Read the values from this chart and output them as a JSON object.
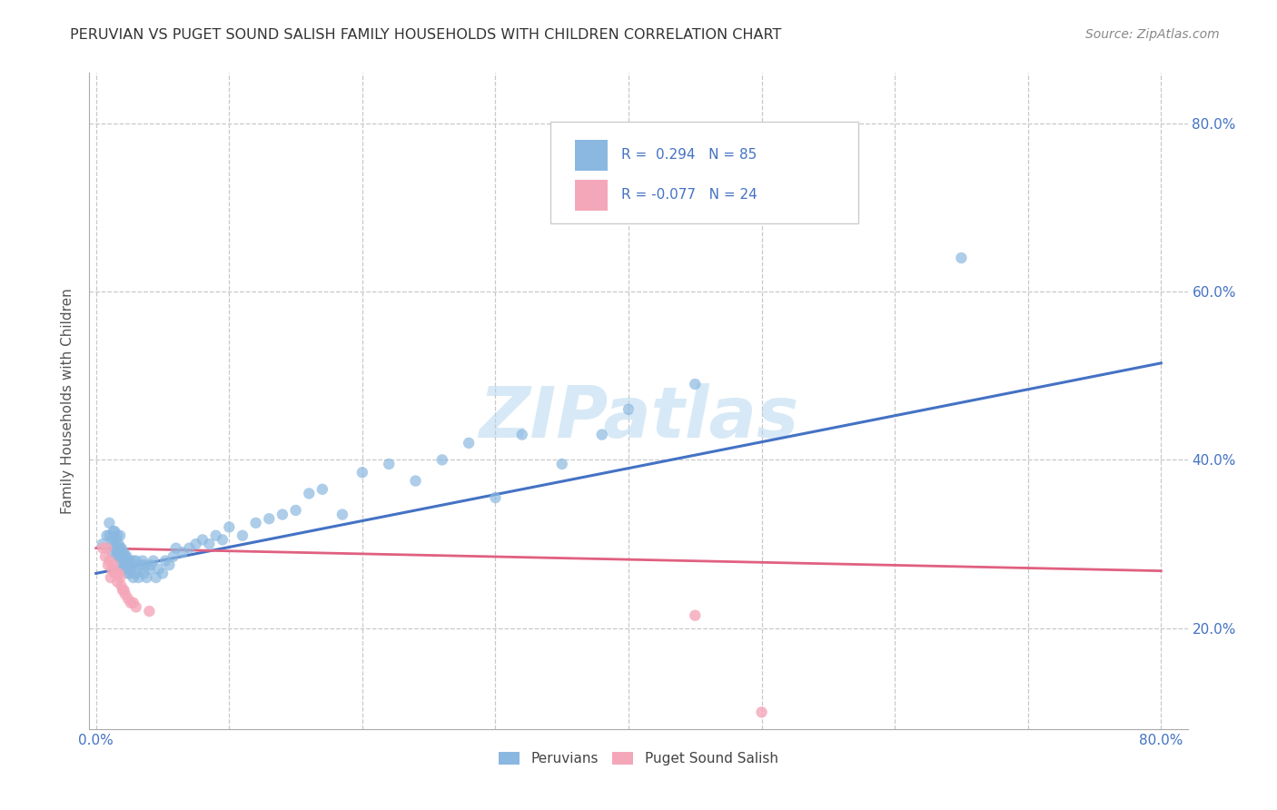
{
  "title": "PERUVIAN VS PUGET SOUND SALISH FAMILY HOUSEHOLDS WITH CHILDREN CORRELATION CHART",
  "source": "Source: ZipAtlas.com",
  "ylabel": "Family Households with Children",
  "ytick_labels": [
    "20.0%",
    "40.0%",
    "60.0%",
    "80.0%"
  ],
  "ytick_values": [
    0.2,
    0.4,
    0.6,
    0.8
  ],
  "xtick_labels": [
    "0.0%",
    "80.0%"
  ],
  "xtick_values": [
    0.0,
    0.8
  ],
  "xlim": [
    -0.005,
    0.82
  ],
  "ylim": [
    0.08,
    0.86
  ],
  "watermark": "ZIPatlas",
  "color_peruvian": "#8ab8e0",
  "color_salish": "#f4a7b9",
  "color_trend_peruvian": "#4472c4",
  "color_trend_salish": "#e06080",
  "background_color": "#ffffff",
  "grid_color": "#c8c8c8",
  "trend_peru_x0": 0.0,
  "trend_peru_y0": 0.265,
  "trend_peru_x1": 0.8,
  "trend_peru_y1": 0.515,
  "trend_salish_x0": 0.0,
  "trend_salish_y0": 0.295,
  "trend_salish_x1": 0.8,
  "trend_salish_y1": 0.268,
  "peru_x": [
    0.005,
    0.008,
    0.01,
    0.01,
    0.012,
    0.012,
    0.013,
    0.013,
    0.014,
    0.014,
    0.015,
    0.015,
    0.015,
    0.016,
    0.016,
    0.017,
    0.017,
    0.018,
    0.018,
    0.018,
    0.019,
    0.019,
    0.02,
    0.02,
    0.021,
    0.021,
    0.022,
    0.022,
    0.023,
    0.023,
    0.024,
    0.024,
    0.025,
    0.025,
    0.026,
    0.027,
    0.028,
    0.028,
    0.03,
    0.03,
    0.032,
    0.033,
    0.034,
    0.035,
    0.036,
    0.037,
    0.038,
    0.04,
    0.041,
    0.043,
    0.045,
    0.047,
    0.05,
    0.052,
    0.055,
    0.058,
    0.06,
    0.065,
    0.07,
    0.075,
    0.08,
    0.085,
    0.09,
    0.095,
    0.1,
    0.11,
    0.12,
    0.13,
    0.14,
    0.15,
    0.16,
    0.17,
    0.185,
    0.2,
    0.22,
    0.24,
    0.26,
    0.28,
    0.3,
    0.32,
    0.35,
    0.38,
    0.4,
    0.45,
    0.65
  ],
  "peru_y": [
    0.3,
    0.31,
    0.31,
    0.325,
    0.29,
    0.305,
    0.3,
    0.315,
    0.295,
    0.315,
    0.285,
    0.295,
    0.305,
    0.29,
    0.31,
    0.285,
    0.3,
    0.28,
    0.295,
    0.31,
    0.275,
    0.295,
    0.27,
    0.29,
    0.275,
    0.29,
    0.27,
    0.285,
    0.275,
    0.285,
    0.265,
    0.28,
    0.265,
    0.28,
    0.27,
    0.275,
    0.26,
    0.28,
    0.265,
    0.28,
    0.26,
    0.27,
    0.275,
    0.28,
    0.265,
    0.275,
    0.26,
    0.27,
    0.275,
    0.28,
    0.26,
    0.27,
    0.265,
    0.28,
    0.275,
    0.285,
    0.295,
    0.29,
    0.295,
    0.3,
    0.305,
    0.3,
    0.31,
    0.305,
    0.32,
    0.31,
    0.325,
    0.33,
    0.335,
    0.34,
    0.36,
    0.365,
    0.335,
    0.385,
    0.395,
    0.375,
    0.4,
    0.42,
    0.355,
    0.43,
    0.395,
    0.43,
    0.46,
    0.49,
    0.64
  ],
  "salish_x": [
    0.005,
    0.007,
    0.008,
    0.009,
    0.01,
    0.011,
    0.012,
    0.013,
    0.014,
    0.015,
    0.016,
    0.017,
    0.018,
    0.019,
    0.02,
    0.021,
    0.022,
    0.024,
    0.026,
    0.028,
    0.03,
    0.04,
    0.45,
    0.5
  ],
  "salish_y": [
    0.295,
    0.285,
    0.295,
    0.275,
    0.28,
    0.26,
    0.27,
    0.275,
    0.265,
    0.265,
    0.255,
    0.265,
    0.26,
    0.25,
    0.245,
    0.245,
    0.24,
    0.235,
    0.23,
    0.23,
    0.225,
    0.22,
    0.215,
    0.1
  ]
}
